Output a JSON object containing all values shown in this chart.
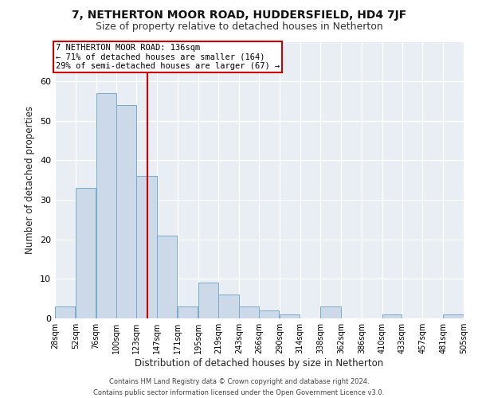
{
  "title1": "7, NETHERTON MOOR ROAD, HUDDERSFIELD, HD4 7JF",
  "title2": "Size of property relative to detached houses in Netherton",
  "xlabel": "Distribution of detached houses by size in Netherton",
  "ylabel": "Number of detached properties",
  "bin_labels": [
    "28sqm",
    "52sqm",
    "76sqm",
    "100sqm",
    "123sqm",
    "147sqm",
    "171sqm",
    "195sqm",
    "219sqm",
    "243sqm",
    "266sqm",
    "290sqm",
    "314sqm",
    "338sqm",
    "362sqm",
    "386sqm",
    "410sqm",
    "433sqm",
    "457sqm",
    "481sqm",
    "505sqm"
  ],
  "bin_edges": [
    28,
    52,
    76,
    100,
    123,
    147,
    171,
    195,
    219,
    243,
    266,
    290,
    314,
    338,
    362,
    386,
    410,
    433,
    457,
    481,
    505
  ],
  "bar_heights": [
    3,
    33,
    57,
    54,
    36,
    21,
    3,
    9,
    6,
    3,
    2,
    1,
    0,
    3,
    0,
    0,
    1,
    0,
    0,
    1,
    0
  ],
  "bar_color": "#ccd9e8",
  "bar_edgecolor": "#7aaac8",
  "vline_x": 136,
  "vline_color": "#cc0000",
  "annotation_line1": "7 NETHERTON MOOR ROAD: 136sqm",
  "annotation_line2": "← 71% of detached houses are smaller (164)",
  "annotation_line3": "29% of semi-detached houses are larger (67) →",
  "annotation_box_edgecolor": "#cc0000",
  "annotation_box_facecolor": "#ffffff",
  "ylim": [
    0,
    70
  ],
  "yticks": [
    0,
    10,
    20,
    30,
    40,
    50,
    60,
    70
  ],
  "background_color": "#e8eef4",
  "grid_color": "#ffffff",
  "footer1": "Contains HM Land Registry data © Crown copyright and database right 2024.",
  "footer2": "Contains public sector information licensed under the Open Government Licence v3.0.",
  "title1_fontsize": 10,
  "title2_fontsize": 9,
  "xlabel_fontsize": 8.5,
  "ylabel_fontsize": 8.5,
  "annotation_fontsize": 7.5
}
